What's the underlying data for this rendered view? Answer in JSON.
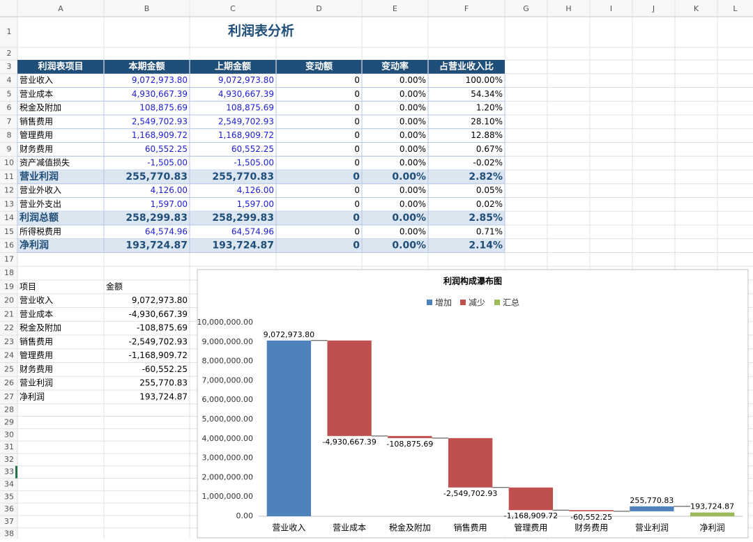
{
  "sheet": {
    "columns": [
      "A",
      "B",
      "C",
      "D",
      "E",
      "F",
      "G",
      "H",
      "I",
      "J",
      "K",
      "L"
    ],
    "row_numbers": [
      1,
      2,
      3,
      4,
      5,
      6,
      7,
      8,
      9,
      10,
      11,
      12,
      13,
      14,
      15,
      16,
      17,
      18,
      19,
      20,
      21,
      22,
      23,
      24,
      25,
      26,
      27,
      28,
      29,
      30,
      31,
      32,
      33,
      34,
      35,
      36,
      37,
      38
    ]
  },
  "title": "利润表分析",
  "table": {
    "header": [
      "利润表项目",
      "本期金额",
      "上期金额",
      "变动额",
      "变动率",
      "占营业收入比"
    ],
    "rows": [
      [
        "营业收入",
        "9,072,973.80",
        "9,072,973.80",
        "0",
        "0.00%",
        "100.00%"
      ],
      [
        "营业成本",
        "4,930,667.39",
        "4,930,667.39",
        "0",
        "0.00%",
        "54.34%"
      ],
      [
        "税金及附加",
        "108,875.69",
        "108,875.69",
        "0",
        "0.00%",
        "1.20%"
      ],
      [
        "销售费用",
        "2,549,702.93",
        "2,549,702.93",
        "0",
        "0.00%",
        "28.10%"
      ],
      [
        "管理费用",
        "1,168,909.72",
        "1,168,909.72",
        "0",
        "0.00%",
        "12.88%"
      ],
      [
        "财务费用",
        "60,552.25",
        "60,552.25",
        "0",
        "0.00%",
        "0.67%"
      ],
      [
        "资产减值损失",
        "-1,505.00",
        "-1,505.00",
        "0",
        "0.00%",
        "-0.02%"
      ],
      [
        "营业利润",
        "255,770.83",
        "255,770.83",
        "0",
        "0.00%",
        "2.82%"
      ],
      [
        "营业外收入",
        "4,126.00",
        "4,126.00",
        "0",
        "0.00%",
        "0.05%"
      ],
      [
        "营业外支出",
        "1,597.00",
        "1,597.00",
        "0",
        "0.00%",
        "0.02%"
      ],
      [
        "利润总额",
        "258,299.83",
        "258,299.83",
        "0",
        "0.00%",
        "2.85%"
      ],
      [
        "所得税费用",
        "64,574.96",
        "64,574.96",
        "0",
        "0.00%",
        "0.71%"
      ],
      [
        "净利润",
        "193,724.87",
        "193,724.87",
        "0",
        "0.00%",
        "2.14%"
      ]
    ],
    "subtotal_rows": [
      7,
      10,
      12
    ]
  },
  "list": {
    "header": [
      "项目",
      "金额"
    ],
    "rows": [
      [
        "营业收入",
        "9,072,973.80"
      ],
      [
        "营业成本",
        "-4,930,667.39"
      ],
      [
        "税金及附加",
        "-108,875.69"
      ],
      [
        "销售费用",
        "-2,549,702.93"
      ],
      [
        "管理费用",
        "-1,168,909.72"
      ],
      [
        "财务费用",
        "-60,552.25"
      ],
      [
        "营业利润",
        "255,770.83"
      ],
      [
        "净利润",
        "193,724.87"
      ]
    ]
  },
  "chart_data": {
    "type": "waterfall",
    "title": "利润构成瀑布图",
    "categories": [
      "营业收入",
      "营业成本",
      "税金及附加",
      "销售费用",
      "管理费用",
      "财务费用",
      "营业利润",
      "净利润"
    ],
    "values": [
      9072973.8,
      -4930667.39,
      -108875.69,
      -2549702.93,
      -1168909.72,
      -60552.25,
      255770.83,
      193724.87
    ],
    "value_labels": [
      "9,072,973.80",
      "-4,930,667.39",
      "-108,875.69",
      "-2,549,702.93",
      "-1,168,909.72",
      "-60,552.25",
      "255,770.83",
      "193,724.87"
    ],
    "series": [
      {
        "name": "增加",
        "color": "#4f81bd"
      },
      {
        "name": "减少",
        "color": "#c0504d"
      },
      {
        "name": "汇总",
        "color": "#9bbb59"
      }
    ],
    "totals": [
      7
    ],
    "ylim": [
      0,
      10000000
    ],
    "yticks": [
      {
        "value": 0,
        "label": "0.00"
      },
      {
        "value": 1000000,
        "label": "1,000,000.00"
      },
      {
        "value": 2000000,
        "label": "2,000,000.00"
      },
      {
        "value": 3000000,
        "label": "3,000,000.00"
      },
      {
        "value": 4000000,
        "label": "4,000,000.00"
      },
      {
        "value": 5000000,
        "label": "5,000,000.00"
      },
      {
        "value": 6000000,
        "label": "6,000,000.00"
      },
      {
        "value": 7000000,
        "label": "7,000,000.00"
      },
      {
        "value": 8000000,
        "label": "8,000,000.00"
      },
      {
        "value": 9000000,
        "label": "9,000,000.00"
      },
      {
        "value": 10000000,
        "label": "10,000,000.00"
      }
    ],
    "grid": false
  }
}
